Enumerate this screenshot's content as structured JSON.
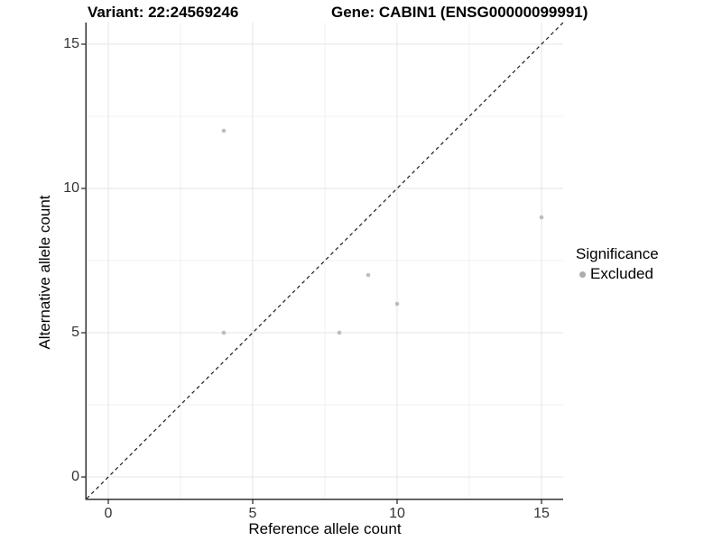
{
  "chart_data": {
    "type": "scatter",
    "title_left": "Variant: 22:24569246",
    "title_right": "Gene: CABIN1 (ENSG00000099991)",
    "xlabel": "Reference allele count",
    "ylabel": "Alternative allele count",
    "xlim": [
      -0.75,
      15.75
    ],
    "ylim": [
      -0.75,
      15.75
    ],
    "xticks": [
      0,
      5,
      10,
      15
    ],
    "yticks": [
      0,
      5,
      10,
      15
    ],
    "xminor": [
      2.5,
      7.5,
      12.5
    ],
    "yminor": [
      2.5,
      7.5,
      12.5
    ],
    "grid": "on",
    "identity_line": {
      "style": "dashed",
      "slope": 1,
      "intercept": 0,
      "color": "#1a1a1a"
    },
    "series": [
      {
        "name": "Excluded",
        "color": "#bdbdbd",
        "points": [
          {
            "x": 4,
            "y": 12
          },
          {
            "x": 4,
            "y": 5
          },
          {
            "x": 8,
            "y": 5
          },
          {
            "x": 9,
            "y": 7
          },
          {
            "x": 10,
            "y": 6
          },
          {
            "x": 15,
            "y": 9
          }
        ]
      }
    ],
    "legend": {
      "position": "right",
      "title": "Significance",
      "entries": [
        {
          "label": "Excluded",
          "color": "#adadad"
        }
      ]
    },
    "colors": {
      "background": "#ffffff",
      "grid_major": "#e4e4e4",
      "grid_minor": "#f1f1f1",
      "axis_line": "#333333",
      "tick_text": "#333333",
      "point": "#bdbdbd"
    }
  }
}
